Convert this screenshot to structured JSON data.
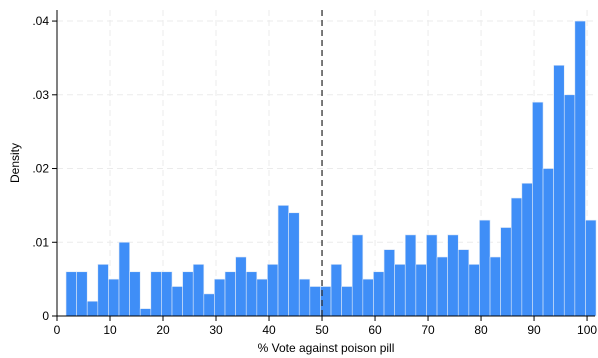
{
  "chart_data": {
    "type": "bar",
    "subtype": "histogram",
    "xlabel": "% Vote against poison pill",
    "ylabel": "Density",
    "xlim": [
      0,
      101.5
    ],
    "ylim": [
      0,
      0.0415
    ],
    "x_ticks": [
      0,
      10,
      20,
      30,
      40,
      50,
      60,
      70,
      80,
      90,
      100
    ],
    "y_ticks": [
      0,
      0.01,
      0.02,
      0.03,
      0.04
    ],
    "y_tick_labels": [
      "0",
      ".01",
      ".02",
      ".03",
      ".04"
    ],
    "grid": true,
    "bin_start": 1.7,
    "bin_width": 2.0,
    "values": [
      0.006,
      0.006,
      0.002,
      0.007,
      0.005,
      0.01,
      0.006,
      0.001,
      0.006,
      0.006,
      0.004,
      0.006,
      0.007,
      0.003,
      0.005,
      0.006,
      0.008,
      0.006,
      0.005,
      0.007,
      0.015,
      0.014,
      0.005,
      0.004,
      0.004,
      0.007,
      0.004,
      0.011,
      0.005,
      0.006,
      0.009,
      0.007,
      0.011,
      0.007,
      0.011,
      0.008,
      0.011,
      0.009,
      0.007,
      0.013,
      0.008,
      0.012,
      0.016,
      0.018,
      0.029,
      0.02,
      0.034,
      0.03,
      0.04,
      0.013
    ],
    "reference_line": {
      "x": 50,
      "style": "dashed"
    },
    "colors": {
      "bar": "#3f8ef7",
      "bar_edge": "#dfe9f7",
      "grid": "#ebebeb",
      "axis": "#000000",
      "reference_line": "#333333"
    }
  }
}
